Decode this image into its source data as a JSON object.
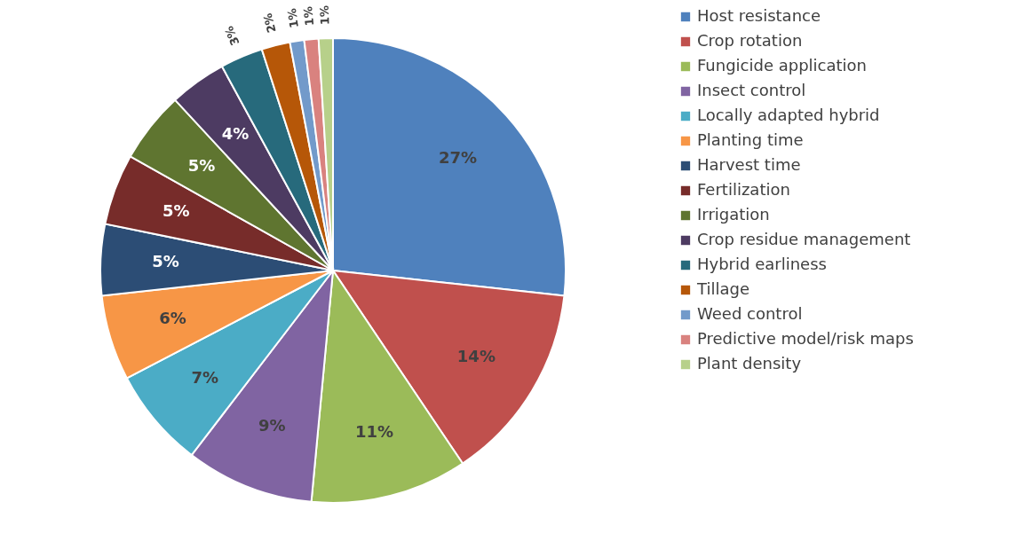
{
  "chart_data": {
    "type": "pie",
    "categories": [
      "Host resistance",
      "Crop rotation",
      "Fungicide application",
      "Insect control",
      "Locally adapted hybrid",
      "Planting time",
      "Harvest time",
      "Fertilization",
      "Irrigation",
      "Crop residue management",
      "Hybrid earliness",
      "Tillage",
      "Weed control",
      "Predictive model/risk maps",
      "Plant density"
    ],
    "values": [
      27,
      14,
      11,
      9,
      7,
      6,
      5,
      5,
      5,
      4,
      3,
      2,
      1,
      1,
      1
    ],
    "value_labels": [
      "27%",
      "14%",
      "11%",
      "9%",
      "7%",
      "6%",
      "5%",
      "5%",
      "5%",
      "4%",
      "3%",
      "2%",
      "1%",
      "1%",
      "1%"
    ],
    "colors": [
      "#4f81bd",
      "#c0504d",
      "#9bbb59",
      "#8064a2",
      "#4bacc6",
      "#f79646",
      "#2c4d75",
      "#772c2a",
      "#5f7530",
      "#4d3b62",
      "#276a7c",
      "#b65708",
      "#729aca",
      "#d9827f",
      "#b7d08a"
    ],
    "legend": "right"
  }
}
